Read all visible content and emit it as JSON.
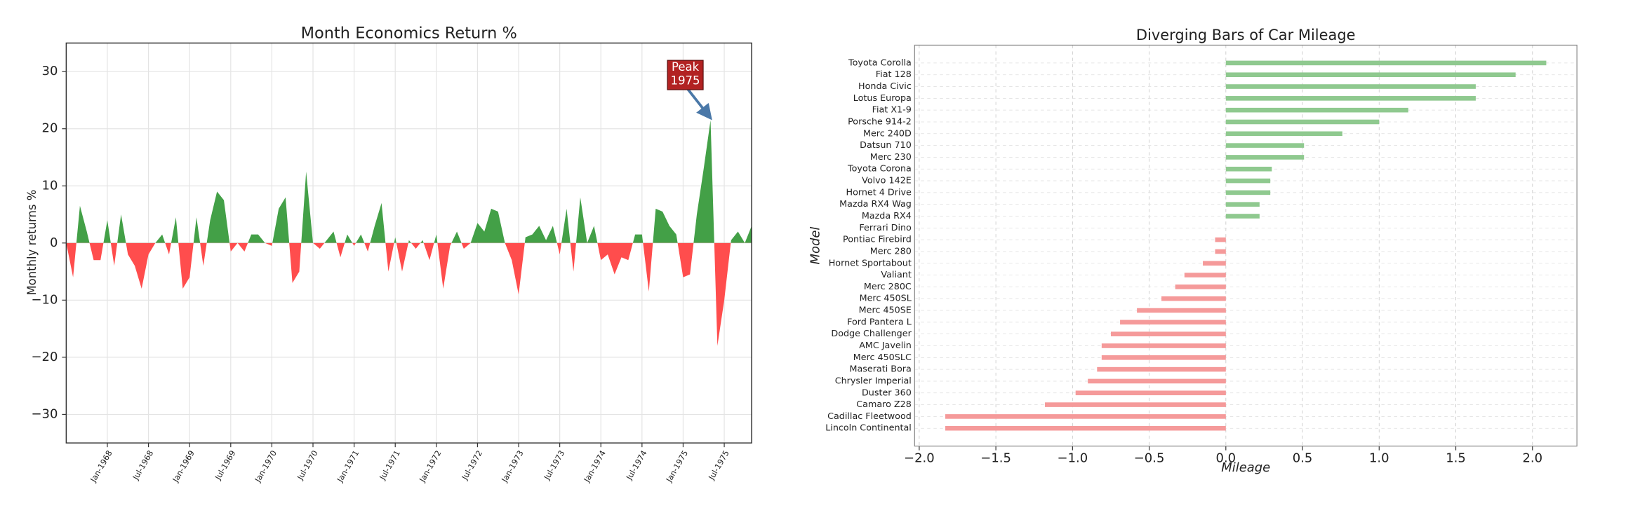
{
  "chart_data": [
    {
      "type": "area",
      "title": "Month Economics Return %",
      "ylabel": "Monthly returns %",
      "x": [
        "1967-07",
        "1967-08",
        "1967-09",
        "1967-10",
        "1967-11",
        "1967-12",
        "1968-01",
        "1968-02",
        "1968-03",
        "1968-04",
        "1968-05",
        "1968-06",
        "1968-07",
        "1968-08",
        "1968-09",
        "1968-10",
        "1968-11",
        "1968-12",
        "1969-01",
        "1969-02",
        "1969-03",
        "1969-04",
        "1969-05",
        "1969-06",
        "1969-07",
        "1969-08",
        "1969-09",
        "1969-10",
        "1969-11",
        "1969-12",
        "1970-01",
        "1970-02",
        "1970-03",
        "1970-04",
        "1970-05",
        "1970-06",
        "1970-07",
        "1970-08",
        "1970-09",
        "1970-10",
        "1970-11",
        "1970-12",
        "1971-01",
        "1971-02",
        "1971-03",
        "1971-04",
        "1971-05",
        "1971-06",
        "1971-07",
        "1971-08",
        "1971-09",
        "1971-10",
        "1971-11",
        "1971-12",
        "1972-01",
        "1972-02",
        "1972-03",
        "1972-04",
        "1972-05",
        "1972-06",
        "1972-07",
        "1972-08",
        "1972-09",
        "1972-10",
        "1972-11",
        "1972-12",
        "1973-01",
        "1973-02",
        "1973-03",
        "1973-04",
        "1973-05",
        "1973-06",
        "1973-07",
        "1973-08",
        "1973-09",
        "1973-10",
        "1973-11",
        "1973-12",
        "1974-01",
        "1974-02",
        "1974-03",
        "1974-04",
        "1974-05",
        "1974-06",
        "1974-07",
        "1974-08",
        "1974-09",
        "1974-10",
        "1974-11",
        "1974-12",
        "1975-01",
        "1975-02",
        "1975-03",
        "1975-04",
        "1975-05",
        "1975-06",
        "1975-07",
        "1975-08",
        "1975-09",
        "1975-10",
        "1975-11"
      ],
      "values": [
        0,
        -6,
        6.5,
        2,
        -3,
        -3,
        4,
        -4,
        5,
        -2,
        -4,
        -8,
        -2,
        0,
        1.5,
        -2,
        4.5,
        -8,
        -6,
        4.5,
        -4,
        4,
        9,
        7.5,
        -1.5,
        0,
        -1.5,
        1.5,
        1.5,
        0,
        -0.5,
        6,
        8,
        -7,
        -5,
        12.5,
        0,
        -1,
        0.5,
        2,
        -2.5,
        1.5,
        -0.5,
        1.5,
        -1.5,
        3,
        7,
        -5,
        1,
        -5,
        0.5,
        -1,
        0.5,
        -3,
        1.5,
        -8,
        -0.5,
        2,
        -1,
        0,
        3.5,
        2,
        6,
        5.5,
        0,
        -3,
        -9,
        1,
        1.5,
        3,
        0.5,
        3,
        -2,
        6,
        -5,
        8,
        0,
        3,
        -3,
        -2,
        -5.5,
        -2.5,
        -3,
        1.5,
        1.5,
        -8.5,
        6,
        5.5,
        3,
        1.5,
        -6,
        -5.5,
        5,
        13,
        21.5,
        -18,
        -10,
        0.5,
        2,
        0,
        3
      ],
      "color_positive": "#43a047",
      "color_negative": "#ff4d4d",
      "ylim": [
        -35,
        35
      ],
      "yticks": [
        {
          "value": -30,
          "label": "−30"
        },
        {
          "value": -20,
          "label": "−20"
        },
        {
          "value": -10,
          "label": "−10"
        },
        0,
        10,
        20,
        30
      ],
      "xticks": [
        {
          "value": "1968-01",
          "label": "Jan-1968"
        },
        {
          "value": "1968-07",
          "label": "Jul-1968"
        },
        {
          "value": "1969-01",
          "label": "Jan-1969"
        },
        {
          "value": "1969-07",
          "label": "Jul-1969"
        },
        {
          "value": "1970-01",
          "label": "Jan-1970"
        },
        {
          "value": "1970-07",
          "label": "Jul-1970"
        },
        {
          "value": "1971-01",
          "label": "Jan-1971"
        },
        {
          "value": "1971-07",
          "label": "Jul-1971"
        },
        {
          "value": "1972-01",
          "label": "Jan-1972"
        },
        {
          "value": "1972-07",
          "label": "Jul-1972"
        },
        {
          "value": "1973-01",
          "label": "Jan-1973"
        },
        {
          "value": "1973-07",
          "label": "Jul-1973"
        },
        {
          "value": "1974-01",
          "label": "Jan-1974"
        },
        {
          "value": "1974-07",
          "label": "Jul-1974"
        },
        {
          "value": "1975-01",
          "label": "Jan-1975"
        },
        {
          "value": "1975-07",
          "label": "Jul-1975"
        }
      ],
      "grid": true,
      "annotation": {
        "lines": [
          "Peak",
          "1975"
        ],
        "x": "1975-05",
        "y": 21.5,
        "color": "#b22222"
      }
    },
    {
      "type": "hbar",
      "title": "Diverging Bars of Car Mileage",
      "xlabel": "Mileage",
      "ylabel": "Model",
      "categories": [
        "Toyota Corolla",
        "Fiat 128",
        "Honda Civic",
        "Lotus Europa",
        "Fiat X1-9",
        "Porsche 914-2",
        "Merc 240D",
        "Datsun 710",
        "Merc 230",
        "Toyota Corona",
        "Volvo 142E",
        "Hornet 4 Drive",
        "Mazda RX4 Wag",
        "Mazda RX4",
        "Ferrari Dino",
        "Pontiac Firebird",
        "Merc 280",
        "Hornet Sportabout",
        "Valiant",
        "Merc 280C",
        "Merc 450SL",
        "Merc 450SE",
        "Ford Pantera L",
        "Dodge Challenger",
        "AMC Javelin",
        "Merc 450SLC",
        "Maserati Bora",
        "Chrysler Imperial",
        "Duster 360",
        "Camaro Z28",
        "Cadillac Fleetwood",
        "Lincoln Continental"
      ],
      "values": [
        2.09,
        1.89,
        1.63,
        1.63,
        1.19,
        1.0,
        0.76,
        0.51,
        0.51,
        0.3,
        0.29,
        0.29,
        0.22,
        0.22,
        0.0,
        -0.07,
        -0.07,
        -0.15,
        -0.27,
        -0.33,
        -0.42,
        -0.58,
        -0.69,
        -0.75,
        -0.81,
        -0.81,
        -0.84,
        -0.9,
        -0.98,
        -1.18,
        -1.83,
        -1.83
      ],
      "color_positive": "#8fc98f",
      "color_negative": "#f59a9a",
      "xlim": [
        -2.03,
        2.29
      ],
      "xticks": [
        {
          "value": -2.0,
          "label": "−2.0"
        },
        {
          "value": -1.5,
          "label": "−1.5"
        },
        {
          "value": -1.0,
          "label": "−1.0"
        },
        {
          "value": -0.5,
          "label": "−0.5"
        },
        {
          "value": 0.0,
          "label": "0.0"
        },
        {
          "value": 0.5,
          "label": "0.5"
        },
        {
          "value": 1.0,
          "label": "1.0"
        },
        {
          "value": 1.5,
          "label": "1.5"
        },
        {
          "value": 2.0,
          "label": "2.0"
        }
      ],
      "grid": true
    }
  ]
}
